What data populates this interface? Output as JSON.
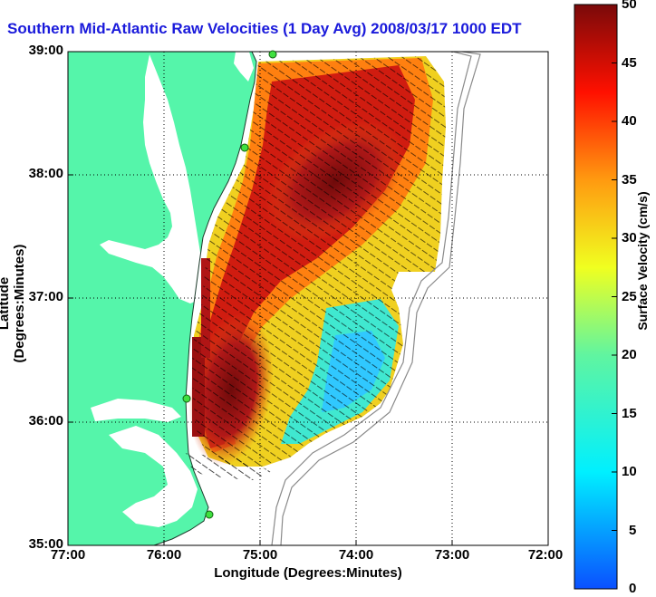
{
  "title": "Southern Mid-Atlantic Raw Velocities (1 Day Avg) 2008/03/17 1000 EDT",
  "axes": {
    "xlabel": "Longitude (Degrees:Minutes)",
    "ylabel": "Latitude (Degrees:Minutes)",
    "xticks": [
      "77:00",
      "76:00",
      "75:00",
      "74:00",
      "73:00",
      "72:00"
    ],
    "yticks": [
      "39:00",
      "38:00",
      "37:00",
      "36:00",
      "35:00"
    ]
  },
  "colorbar": {
    "label": "Surface Velocity (cm/s)",
    "ticks": [
      "50",
      "45",
      "40",
      "35",
      "30",
      "25",
      "20",
      "15",
      "10",
      "5",
      "0"
    ],
    "min": 0,
    "max": 50
  },
  "colors": {
    "land": "#55f5aa",
    "water": "#ffffff",
    "title": "#1a1adb",
    "grid": "#000000"
  },
  "map": {
    "stations": 4,
    "grid_lines": "dotted"
  }
}
